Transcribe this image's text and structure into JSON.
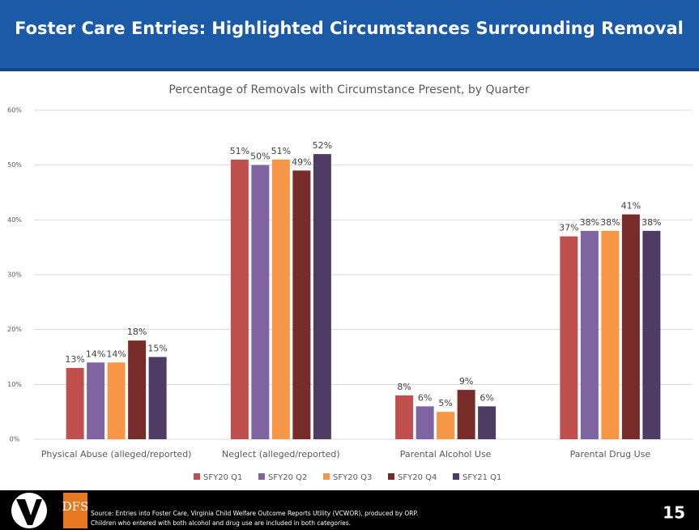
{
  "header": {
    "title": "Foster Care Entries: Highlighted Circumstances Surrounding Removal"
  },
  "chart_data": {
    "type": "bar",
    "title": "Percentage of Removals with Circumstance Present, by Quarter",
    "categories": [
      "Physical Abuse (alleged/reported)",
      "Neglect (alleged/reported)",
      "Parental Alcohol Use",
      "Parental Drug Use"
    ],
    "series": [
      {
        "name": "SFY20 Q1",
        "color": "#c0504d",
        "values": [
          13,
          51,
          8,
          37
        ],
        "value_labels": [
          "13%",
          "51%",
          "8%",
          "37%"
        ]
      },
      {
        "name": "SFY20 Q2",
        "color": "#8064a2",
        "values": [
          14,
          50,
          6,
          38
        ],
        "value_labels": [
          "14%",
          "50%",
          "6%",
          "38%"
        ]
      },
      {
        "name": "SFY20 Q3",
        "color": "#f79646",
        "values": [
          14,
          51,
          5,
          38
        ],
        "value_labels": [
          "14%",
          "51%",
          "5%",
          "38%"
        ]
      },
      {
        "name": "SFY20 Q4",
        "color": "#772c2a",
        "values": [
          18,
          49,
          9,
          41
        ],
        "value_labels": [
          "18%",
          "49%",
          "9%",
          "41%"
        ]
      },
      {
        "name": "SFY21 Q1",
        "color": "#4f3c64",
        "values": [
          15,
          52,
          6,
          38
        ],
        "value_labels": [
          "15%",
          "52%",
          "6%",
          "38%"
        ]
      }
    ],
    "ylim": [
      0,
      60
    ],
    "yticks": [
      {
        "value": 0,
        "label": "0%"
      },
      {
        "value": 10,
        "label": "10%"
      },
      {
        "value": 20,
        "label": "20%"
      },
      {
        "value": 30,
        "label": "30%"
      },
      {
        "value": 40,
        "label": "40%"
      },
      {
        "value": 50,
        "label": "50%"
      },
      {
        "value": 60,
        "label": "60%"
      }
    ],
    "grid": true,
    "legend": "bottom"
  },
  "footer": {
    "logo_text": "DFS",
    "source": [
      "Source: Entries into Foster Care, Virginia Child Welfare Outcome Reports Utility (VCWOR), produced by ORP.",
      "Children who entered with both alcohol and drug use are included in both categories."
    ],
    "page_number": "15"
  }
}
